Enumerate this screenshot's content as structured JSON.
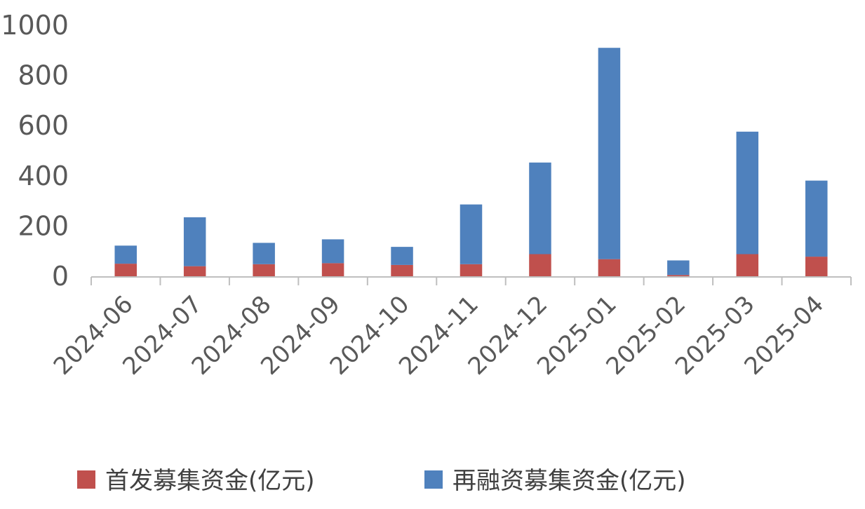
{
  "chart_data": {
    "type": "bar",
    "stacked": true,
    "categories": [
      "2024-06",
      "2024-07",
      "2024-08",
      "2024-09",
      "2024-10",
      "2024-11",
      "2024-12",
      "2025-01",
      "2025-02",
      "2025-03",
      "2025-04"
    ],
    "series": [
      {
        "name": "首发募集资金(亿元)",
        "color": "#C0504D",
        "values": [
          50,
          40,
          48,
          52,
          45,
          48,
          88,
          68,
          5,
          88,
          78
        ]
      },
      {
        "name": "再融资募集资金(亿元)",
        "color": "#4F81BD",
        "values": [
          72,
          195,
          85,
          95,
          72,
          238,
          365,
          842,
          58,
          488,
          303
        ]
      }
    ],
    "yticks": [
      0,
      200,
      400,
      600,
      800,
      1000
    ],
    "ylim": [
      0,
      1000
    ],
    "grid": false,
    "legend_position": "bottom"
  }
}
